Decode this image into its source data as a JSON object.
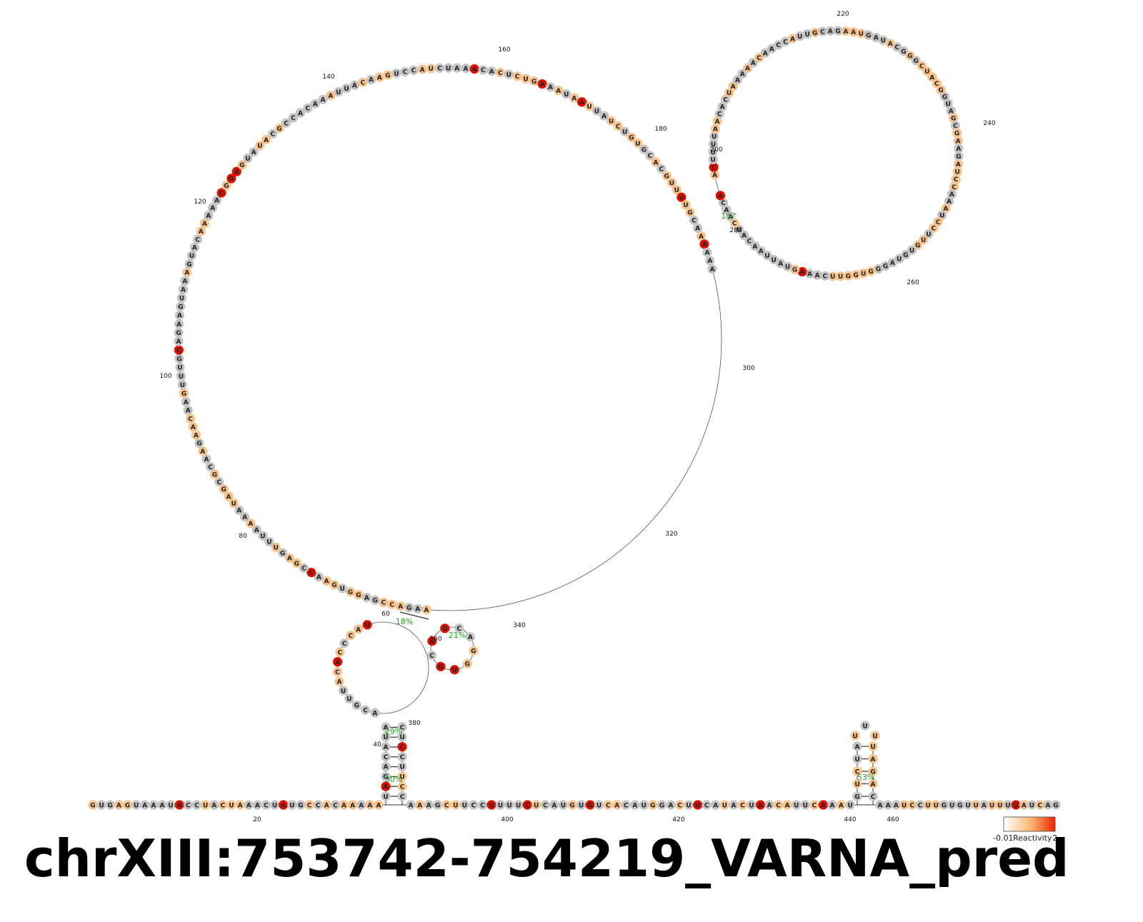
{
  "title": "chrXIII:753742-754219_VARNA_pred",
  "legend": {
    "label": "Reactivity",
    "min": "-0.01",
    "max": "2"
  },
  "colors": {
    "high": "#dd1100",
    "mid": "#f7c48f",
    "none": "#c4c4c4",
    "pair": "#333333",
    "percent": "#22a022"
  },
  "stats": [
    "18%",
    "21%",
    "29%",
    "30%",
    "1%",
    "53%"
  ],
  "positions": [
    "20",
    "40",
    "60",
    "80",
    "100",
    "120",
    "140",
    "160",
    "180",
    "200",
    "220",
    "240",
    "260",
    "280",
    "300",
    "320",
    "340",
    "360",
    "380",
    "400",
    "420",
    "440",
    "460"
  ],
  "sequences": {
    "left_tail": "GUGAGUAAAUACCUACUAAACUAUGCCACAAAAA",
    "stem_5prime": "UAGACAUA",
    "stem_3prime": "CUCCUUCC",
    "small_loop": "ACGUUACACCCAU",
    "multi_loop": "AAGACCGAGGUGAACCGAGUUUAAAAUAGCGCAAGAACAAGUUUGCAGAAGUAAAGUACAAAAACGGAGUAUACGCCACAAAUUACAAGUCCAUCUAAACACUCUGAAAUAAUUAUCUGUGCACGUUUUGCAAAAAA",
    "big_loop": "ACUUUUAACACUAAAAACAACCAUUGCAGAAUGAUACGGGCUACGGUAGCGAAGAUCCAAAUCCUUGUGUAGGGUGGUUCAAAGUAUUAACAUCAACA",
    "hairpin_small": "UCAGGUGCA",
    "bottom_tail": "AAAGCUUCCUUUUCUCAUGUGUCACAUGGACUUCAUACUAACAUUCAAAU",
    "hairpin_right": "GUCUAUUUUAGAC",
    "right_tail": "AAAUCCUUGUGUUAUUUUAUCAG"
  }
}
